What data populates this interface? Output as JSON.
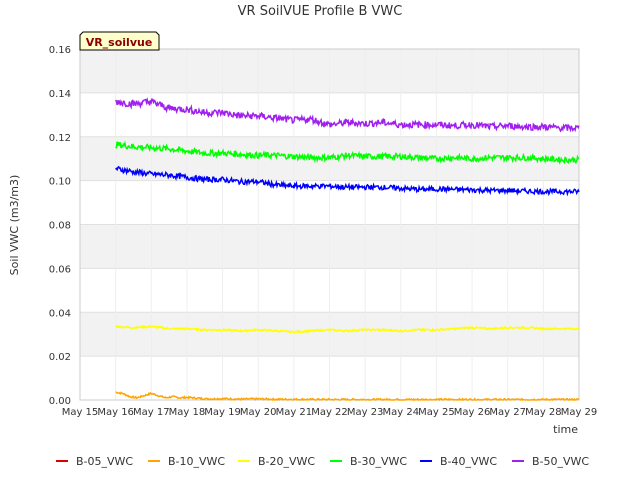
{
  "chart_data": {
    "type": "line",
    "title": "VR SoilVUE Profile B VWC",
    "xlabel": "time",
    "ylabel": "Soil VWC (m3/m3)",
    "site_label": "VR_soilvue",
    "xlim": [
      15,
      29
    ],
    "ylim": [
      0,
      0.16
    ],
    "x_ticks": [
      {
        "value": 15,
        "label": "May 15"
      },
      {
        "value": 16,
        "label": "May 16"
      },
      {
        "value": 17,
        "label": "May 17"
      },
      {
        "value": 18,
        "label": "May 18"
      },
      {
        "value": 19,
        "label": "May 19"
      },
      {
        "value": 20,
        "label": "May 20"
      },
      {
        "value": 21,
        "label": "May 21"
      },
      {
        "value": 22,
        "label": "May 22"
      },
      {
        "value": 23,
        "label": "May 23"
      },
      {
        "value": 24,
        "label": "May 24"
      },
      {
        "value": 25,
        "label": "May 25"
      },
      {
        "value": 26,
        "label": "May 26"
      },
      {
        "value": 27,
        "label": "May 27"
      },
      {
        "value": 28,
        "label": "May 28"
      },
      {
        "value": 29,
        "label": "May 29"
      }
    ],
    "y_ticks": [
      {
        "value": 0.0,
        "label": "0.00"
      },
      {
        "value": 0.02,
        "label": "0.02"
      },
      {
        "value": 0.04,
        "label": "0.04"
      },
      {
        "value": 0.06,
        "label": "0.06"
      },
      {
        "value": 0.08,
        "label": "0.08"
      },
      {
        "value": 0.1,
        "label": "0.10"
      },
      {
        "value": 0.12,
        "label": "0.12"
      },
      {
        "value": 0.14,
        "label": "0.14"
      },
      {
        "value": 0.16,
        "label": "0.16"
      }
    ],
    "grid": true,
    "legend_position": "bottom",
    "series": [
      {
        "name": "B-05_VWC",
        "color": "#dd0000",
        "x": [],
        "y": []
      },
      {
        "name": "B-10_VWC",
        "color": "#ffa500",
        "x": [
          16.0,
          16.2,
          16.4,
          16.6,
          16.8,
          17.0,
          17.2,
          17.4,
          17.6,
          17.8,
          18.0,
          18.3,
          18.6,
          19.0,
          19.5,
          20.0,
          20.5,
          21.0,
          22.0,
          23.0,
          24.0,
          25.0,
          26.0,
          27.0,
          28.0,
          29.0
        ],
        "y": [
          0.0035,
          0.003,
          0.0015,
          0.001,
          0.002,
          0.003,
          0.002,
          0.001,
          0.0015,
          0.001,
          0.0012,
          0.0008,
          0.0005,
          0.0006,
          0.0004,
          0.0005,
          0.0003,
          0.0003,
          0.0002,
          0.0002,
          0.0002,
          0.0002,
          0.0002,
          0.0002,
          0.0002,
          0.0002
        ]
      },
      {
        "name": "B-20_VWC",
        "color": "#ffff00",
        "x": [
          16.0,
          16.5,
          17.0,
          17.5,
          18.0,
          18.5,
          19.0,
          19.5,
          20.0,
          20.5,
          21.0,
          21.5,
          22.0,
          22.5,
          23.0,
          23.5,
          24.0,
          24.5,
          25.0,
          25.5,
          26.0,
          26.5,
          27.0,
          27.5,
          28.0,
          28.5,
          29.0
        ],
        "y": [
          0.0335,
          0.033,
          0.0335,
          0.0325,
          0.0325,
          0.032,
          0.032,
          0.0315,
          0.032,
          0.0315,
          0.031,
          0.0315,
          0.032,
          0.0315,
          0.032,
          0.032,
          0.0315,
          0.032,
          0.032,
          0.0325,
          0.033,
          0.0325,
          0.033,
          0.033,
          0.0325,
          0.0325,
          0.0325
        ]
      },
      {
        "name": "B-30_VWC",
        "color": "#00ff00",
        "x": [
          16.0,
          16.5,
          17.0,
          17.5,
          18.0,
          18.5,
          19.0,
          19.5,
          20.0,
          20.5,
          21.0,
          21.5,
          22.0,
          22.5,
          23.0,
          23.5,
          24.0,
          24.5,
          25.0,
          25.5,
          26.0,
          26.5,
          27.0,
          27.5,
          28.0,
          28.5,
          29.0
        ],
        "y": [
          0.1165,
          0.1155,
          0.115,
          0.1145,
          0.1135,
          0.1125,
          0.1125,
          0.112,
          0.1115,
          0.1115,
          0.111,
          0.1105,
          0.1105,
          0.1115,
          0.111,
          0.111,
          0.111,
          0.1105,
          0.11,
          0.1105,
          0.11,
          0.1105,
          0.1105,
          0.1105,
          0.11,
          0.1095,
          0.1095
        ]
      },
      {
        "name": "B-40_VWC",
        "color": "#0000ff",
        "x": [
          16.0,
          16.5,
          17.0,
          17.5,
          18.0,
          18.5,
          19.0,
          19.5,
          20.0,
          20.5,
          21.0,
          21.5,
          22.0,
          22.5,
          23.0,
          23.5,
          24.0,
          24.5,
          25.0,
          25.5,
          26.0,
          26.5,
          27.0,
          27.5,
          28.0,
          28.5,
          29.0
        ],
        "y": [
          0.1055,
          0.104,
          0.103,
          0.1025,
          0.1015,
          0.1005,
          0.1005,
          0.0995,
          0.0995,
          0.098,
          0.0975,
          0.0975,
          0.0975,
          0.097,
          0.097,
          0.097,
          0.0965,
          0.096,
          0.0962,
          0.096,
          0.0958,
          0.0955,
          0.0955,
          0.0952,
          0.095,
          0.095,
          0.095
        ]
      },
      {
        "name": "B-50_VWC",
        "color": "#a020f0",
        "x": [
          16.0,
          16.5,
          17.0,
          17.5,
          18.0,
          18.5,
          19.0,
          19.5,
          20.0,
          20.5,
          21.0,
          21.5,
          22.0,
          22.5,
          23.0,
          23.5,
          24.0,
          24.5,
          25.0,
          25.5,
          26.0,
          26.5,
          27.0,
          27.5,
          28.0,
          28.5,
          29.0
        ],
        "y": [
          0.136,
          0.135,
          0.136,
          0.133,
          0.1325,
          0.131,
          0.131,
          0.1295,
          0.1295,
          0.1285,
          0.1275,
          0.128,
          0.1255,
          0.1265,
          0.126,
          0.1265,
          0.1255,
          0.1255,
          0.1255,
          0.125,
          0.1255,
          0.1245,
          0.125,
          0.1245,
          0.1245,
          0.124,
          0.124
        ]
      }
    ]
  }
}
